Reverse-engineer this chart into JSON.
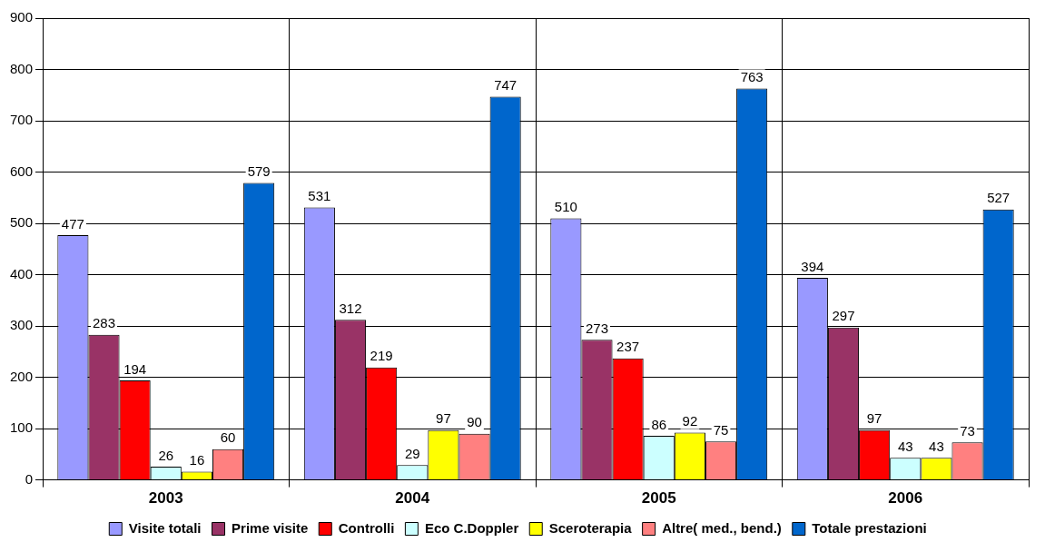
{
  "chart_data": {
    "type": "bar",
    "categories": [
      "2003",
      "2004",
      "2005",
      "2006"
    ],
    "series": [
      {
        "name": "Visite totali",
        "color": "#9999ff",
        "values": [
          477,
          531,
          510,
          394
        ]
      },
      {
        "name": "Prime visite",
        "color": "#993366",
        "values": [
          283,
          312,
          273,
          297
        ]
      },
      {
        "name": "Controlli",
        "color": "#ff0000",
        "values": [
          194,
          219,
          237,
          97
        ]
      },
      {
        "name": "Eco C.Doppler",
        "color": "#ccffff",
        "values": [
          26,
          29,
          86,
          43
        ]
      },
      {
        "name": "Sceroterapia",
        "color": "#ffff00",
        "values": [
          16,
          97,
          92,
          43
        ]
      },
      {
        "name": "Altre( med., bend.)",
        "color": "#ff8080",
        "values": [
          60,
          90,
          75,
          73
        ]
      },
      {
        "name": "Totale prestazioni",
        "color": "#0066cc",
        "values": [
          579,
          747,
          763,
          527
        ]
      }
    ],
    "ylim": [
      0,
      900
    ],
    "yticks": [
      0,
      100,
      200,
      300,
      400,
      500,
      600,
      700,
      800,
      900
    ],
    "grid": true,
    "legend": "bottom",
    "data_labels": true
  }
}
